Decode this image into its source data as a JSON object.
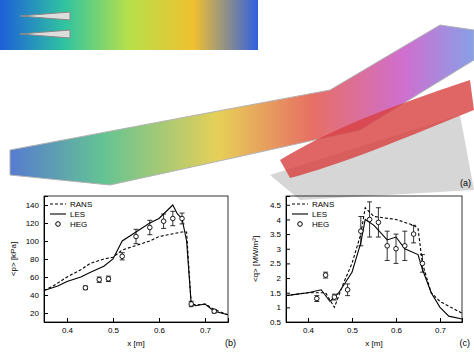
{
  "image_panel": {
    "label": "(a)"
  },
  "chart_data": [
    {
      "type": "line",
      "annotations": [
        "(b)"
      ],
      "x_label": "x [m]",
      "y_label": "<p> [kPa]",
      "xlim": [
        0.35,
        0.75
      ],
      "xticks": [
        0.4,
        0.5,
        0.6,
        0.7
      ],
      "ylim": [
        10,
        150
      ],
      "yticks": [
        20,
        40,
        60,
        80,
        100,
        120,
        140
      ],
      "legend": "upper left",
      "series": [
        {
          "name": "RANS",
          "type": "line",
          "line_style": "dashed",
          "color": "#000000",
          "x": [
            0.35,
            0.37,
            0.4,
            0.43,
            0.45,
            0.48,
            0.5,
            0.52,
            0.55,
            0.58,
            0.6,
            0.62,
            0.65,
            0.66,
            0.67,
            0.68,
            0.7,
            0.72,
            0.75
          ],
          "values": [
            45,
            50,
            60,
            68,
            75,
            80,
            82,
            90,
            95,
            100,
            105,
            107,
            110,
            110,
            30,
            29,
            30,
            24,
            18
          ]
        },
        {
          "name": "LES",
          "type": "line",
          "line_style": "solid",
          "color": "#000000",
          "x": [
            0.35,
            0.38,
            0.4,
            0.43,
            0.45,
            0.48,
            0.5,
            0.52,
            0.55,
            0.58,
            0.6,
            0.62,
            0.63,
            0.64,
            0.65,
            0.66,
            0.67,
            0.68,
            0.7,
            0.72,
            0.75
          ],
          "values": [
            45,
            50,
            55,
            60,
            65,
            72,
            80,
            100,
            110,
            120,
            125,
            135,
            140,
            130,
            125,
            100,
            30,
            28,
            30,
            22,
            18
          ]
        },
        {
          "name": "HEG",
          "type": "scatter",
          "marker": "circle",
          "color": "#000000",
          "x": [
            0.44,
            0.47,
            0.49,
            0.52,
            0.55,
            0.58,
            0.61,
            0.63,
            0.65,
            0.67,
            0.72
          ],
          "values": [
            48,
            57,
            58,
            83,
            105,
            115,
            122,
            125,
            125,
            30,
            22
          ],
          "errors": [
            2,
            3,
            3,
            4,
            8,
            8,
            8,
            8,
            6,
            3,
            2
          ]
        }
      ]
    },
    {
      "type": "line",
      "annotations": [
        "(c)"
      ],
      "x_label": "x [m]",
      "y_label": "<q> [MW/m²]",
      "xlim": [
        0.35,
        0.75
      ],
      "xticks": [
        0.4,
        0.5,
        0.6,
        0.7
      ],
      "ylim": [
        0.5,
        4.8
      ],
      "yticks": [
        0.5,
        1,
        1.5,
        2,
        2.5,
        3,
        3.5,
        4,
        4.5
      ],
      "legend": "upper left",
      "series": [
        {
          "name": "RANS",
          "type": "line",
          "line_style": "dashed",
          "color": "#000000",
          "x": [
            0.35,
            0.4,
            0.44,
            0.46,
            0.48,
            0.5,
            0.52,
            0.53,
            0.55,
            0.6,
            0.64,
            0.65,
            0.66,
            0.68,
            0.7,
            0.75
          ],
          "values": [
            1.4,
            1.5,
            1.5,
            1.0,
            1.8,
            2.5,
            3.5,
            4.4,
            4.1,
            4.0,
            3.8,
            3.7,
            2.5,
            1.5,
            1.2,
            0.8
          ]
        },
        {
          "name": "LES",
          "type": "line",
          "line_style": "solid",
          "color": "#000000",
          "x": [
            0.35,
            0.4,
            0.43,
            0.45,
            0.47,
            0.5,
            0.52,
            0.53,
            0.55,
            0.58,
            0.6,
            0.62,
            0.65,
            0.66,
            0.68,
            0.7,
            0.72,
            0.75
          ],
          "values": [
            1.4,
            1.5,
            1.6,
            1.2,
            1.5,
            2.2,
            3.2,
            4.0,
            3.8,
            3.3,
            3.4,
            3.0,
            2.8,
            2.3,
            1.5,
            1.0,
            0.7,
            0.6
          ]
        },
        {
          "name": "HEG",
          "type": "scatter",
          "marker": "circle",
          "color": "#000000",
          "x": [
            0.42,
            0.44,
            0.46,
            0.49,
            0.52,
            0.54,
            0.56,
            0.58,
            0.6,
            0.62,
            0.64,
            0.66
          ],
          "values": [
            1.3,
            2.1,
            1.35,
            1.6,
            3.6,
            4.0,
            3.9,
            3.1,
            3.0,
            3.1,
            3.5,
            2.5
          ],
          "errors": [
            0.1,
            0.1,
            0.1,
            0.2,
            0.5,
            0.6,
            0.5,
            0.5,
            0.5,
            0.5,
            0.3,
            0.3
          ]
        }
      ]
    }
  ]
}
